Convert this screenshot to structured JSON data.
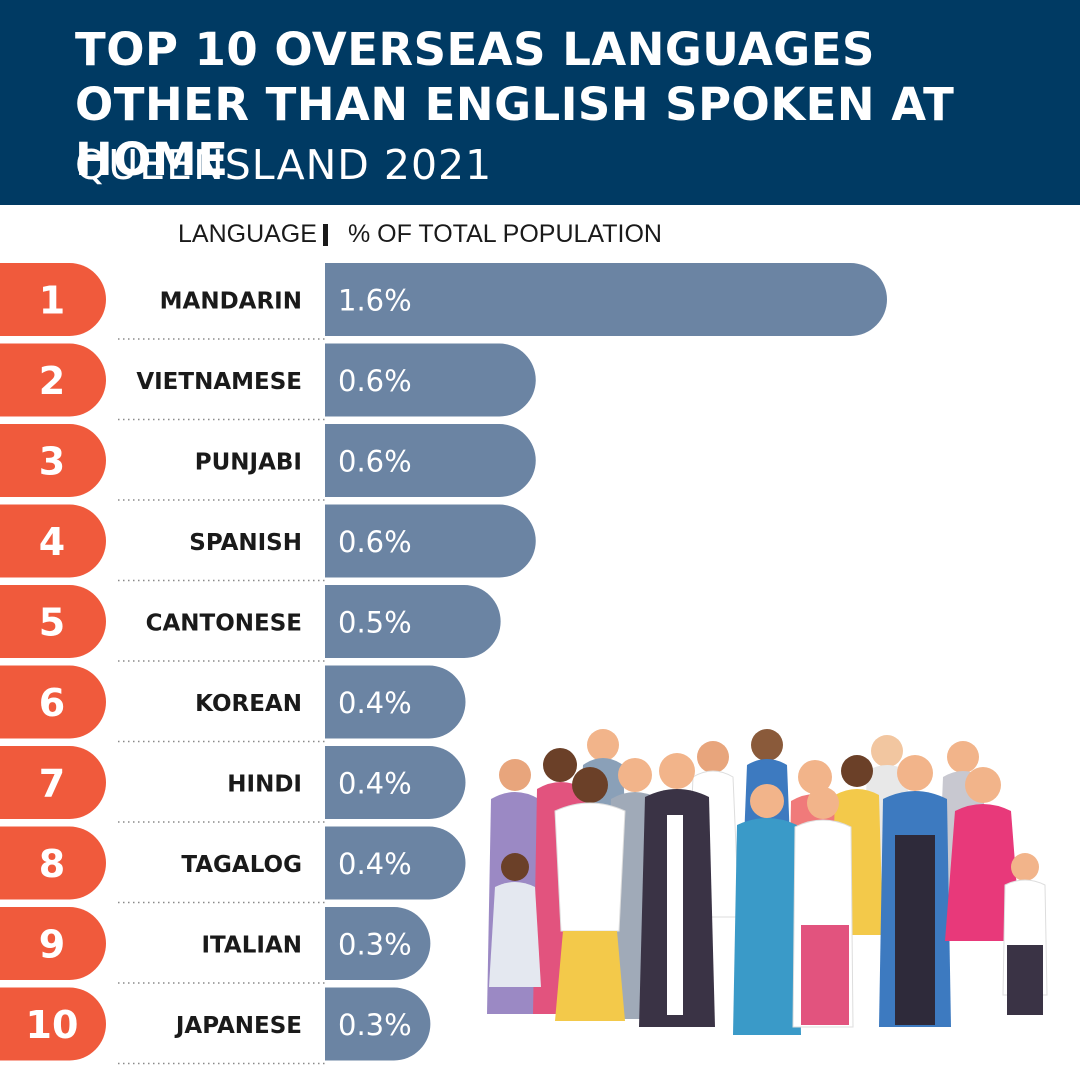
{
  "header": {
    "title": "TOP 10 OVERSEAS LANGUAGES OTHER THAN ENGLISH SPOKEN AT HOME",
    "subtitle": "QUEENSLAND 2021"
  },
  "columns": {
    "language": "LANGUAGE",
    "percent": "% OF TOTAL POPULATION"
  },
  "colors": {
    "header_bg": "#003a63",
    "rank_tab": "#f05a3c",
    "bar": "#6b84a3",
    "text": "#1a1a1a"
  },
  "chart_data": {
    "type": "bar",
    "orientation": "horizontal",
    "title": "TOP 10 OVERSEAS LANGUAGES OTHER THAN ENGLISH SPOKEN AT HOME",
    "subtitle": "QUEENSLAND 2021",
    "xlabel": "% OF TOTAL POPULATION",
    "ylabel": "LANGUAGE",
    "ranks": [
      "1",
      "2",
      "3",
      "4",
      "5",
      "6",
      "7",
      "8",
      "9",
      "10"
    ],
    "categories": [
      "MANDARIN",
      "VIETNAMESE",
      "PUNJABI",
      "SPANISH",
      "CANTONESE",
      "KOREAN",
      "HINDI",
      "TAGALOG",
      "ITALIAN",
      "JAPANESE"
    ],
    "values": [
      1.6,
      0.6,
      0.6,
      0.6,
      0.5,
      0.4,
      0.4,
      0.4,
      0.3,
      0.3
    ],
    "value_labels": [
      "1.6%",
      "0.6%",
      "0.6%",
      "0.6%",
      "0.5%",
      "0.4%",
      "0.4%",
      "0.4%",
      "0.3%",
      "0.3%"
    ],
    "xlim": [
      0,
      1.6
    ],
    "grid": false,
    "legend": "none"
  },
  "illustration": {
    "icon": "crowd-of-diverse-people-icon"
  }
}
